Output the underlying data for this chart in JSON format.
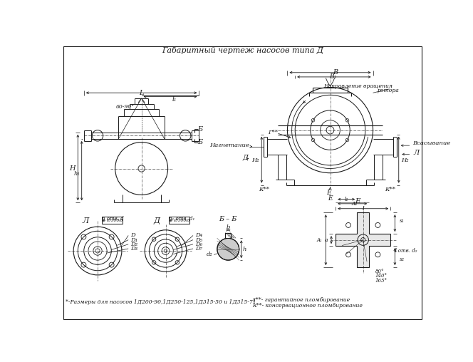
{
  "title": "Габаритный чертеж насосов типа Д",
  "bg_color": "#ffffff",
  "line_color": "#1a1a1a",
  "footnote1": "*-Размеры для насосов 1Д200-90,1Д250-125,1Д315-50 и 1Д315-71",
  "footnote2": "Г**- гарантийное пломбирование",
  "footnote3": "К**- консервационное пломбирование"
}
